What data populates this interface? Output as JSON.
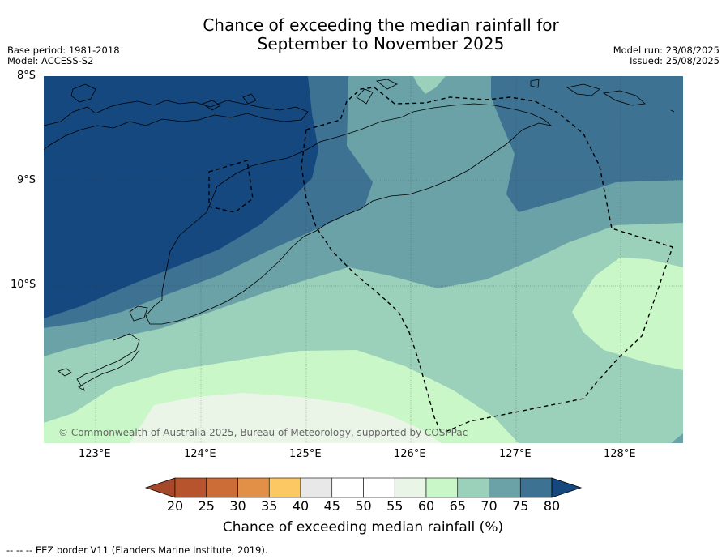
{
  "title_line1": "Chance of exceeding the median rainfall for",
  "title_line2": "September to November 2025",
  "meta_left": {
    "base_period": "Base period: 1981-2018",
    "model": "Model: ACCESS-S2"
  },
  "meta_right": {
    "model_run": "Model run: 23/08/2025",
    "issued": "Issued: 25/08/2025"
  },
  "map": {
    "lat_labels": [
      "8°S",
      "9°S",
      "10°S"
    ],
    "lon_labels": [
      "123°E",
      "124°E",
      "125°E",
      "126°E",
      "127°E",
      "128°E"
    ],
    "copyright": "© Commonwealth of Australia 2025, Bureau of Meteorology, supported by COSPPac",
    "colors": {
      "c80": "#15487f",
      "c75": "#3d7292",
      "c70": "#6aa2a7",
      "c65": "#9bd0ba",
      "c60": "#c9f7c8",
      "c55": "#eaf5e8"
    }
  },
  "colorbar": {
    "labels": [
      "20",
      "25",
      "30",
      "35",
      "40",
      "45",
      "50",
      "55",
      "60",
      "65",
      "70",
      "75",
      "80"
    ],
    "colors": [
      "#a5492a",
      "#b7532d",
      "#cc6d38",
      "#e29048",
      "#fcc863",
      "#e8e8e8",
      "#ffffff",
      "#ffffff",
      "#e9f5e6",
      "#c9f7c8",
      "#9bd0ba",
      "#6aa2a7",
      "#3d7292",
      "#15487f"
    ],
    "title": "Chance of exceeding median rainfall (%)"
  },
  "footer": "--  --  -- EEZ border V11 (Flanders Marine Institute, 2019)."
}
